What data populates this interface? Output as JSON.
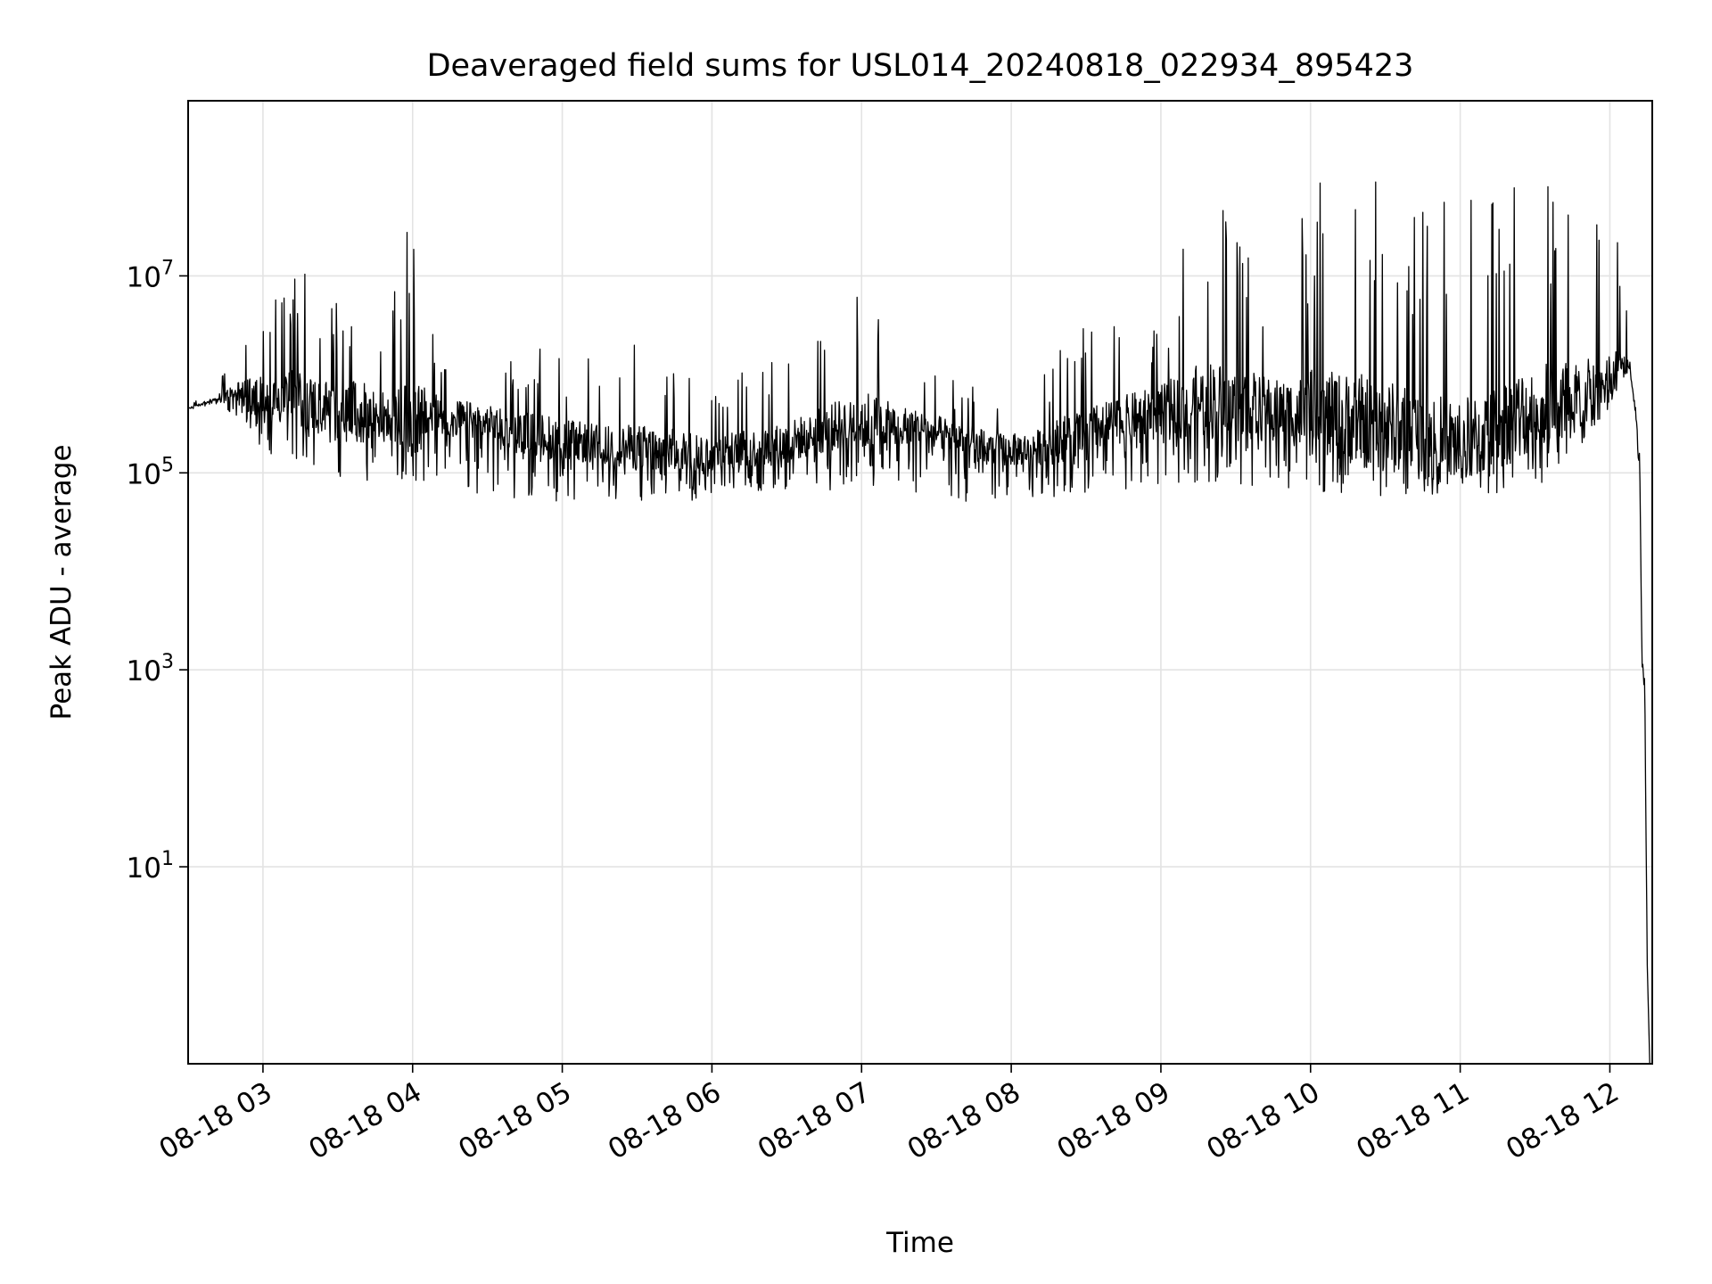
{
  "chart_data": {
    "type": "line",
    "title": "Deaveraged field sums for USL014_20240818_022934_895423",
    "xlabel": "Time",
    "ylabel": "Peak ADU - average",
    "xscale": "time",
    "yscale": "log",
    "xlim": [
      "2024-08-18 02:30",
      "2024-08-18 12:17"
    ],
    "ylim": [
      0.1,
      600000000
    ],
    "grid": true,
    "line_color": "#000000",
    "x_ticks": [
      {
        "value": "2024-08-18 03:00",
        "label": "08-18 03"
      },
      {
        "value": "2024-08-18 04:00",
        "label": "08-18 04"
      },
      {
        "value": "2024-08-18 05:00",
        "label": "08-18 05"
      },
      {
        "value": "2024-08-18 06:00",
        "label": "08-18 06"
      },
      {
        "value": "2024-08-18 07:00",
        "label": "08-18 07"
      },
      {
        "value": "2024-08-18 08:00",
        "label": "08-18 08"
      },
      {
        "value": "2024-08-18 09:00",
        "label": "08-18 09"
      },
      {
        "value": "2024-08-18 10:00",
        "label": "08-18 10"
      },
      {
        "value": "2024-08-18 11:00",
        "label": "08-18 11"
      },
      {
        "value": "2024-08-18 12:00",
        "label": "08-18 12"
      }
    ],
    "y_ticks": [
      {
        "value": 10,
        "base": "10",
        "exp": "1"
      },
      {
        "value": 1000,
        "base": "10",
        "exp": "3"
      },
      {
        "value": 100000,
        "base": "10",
        "exp": "5"
      },
      {
        "value": 10000000,
        "base": "10",
        "exp": "7"
      }
    ],
    "series": [
      {
        "x": [
          "2024-08-18 02:30",
          "2024-08-18 02:40",
          "2024-08-18 02:50",
          "2024-08-18 03:00",
          "2024-08-18 03:10",
          "2024-08-18 03:20",
          "2024-08-18 03:30",
          "2024-08-18 03:40",
          "2024-08-18 03:50",
          "2024-08-18 04:00",
          "2024-08-18 04:10",
          "2024-08-18 04:20",
          "2024-08-18 04:30",
          "2024-08-18 04:40",
          "2024-08-18 04:50",
          "2024-08-18 05:00",
          "2024-08-18 05:10",
          "2024-08-18 05:20",
          "2024-08-18 05:30",
          "2024-08-18 05:40",
          "2024-08-18 05:50",
          "2024-08-18 06:00",
          "2024-08-18 06:10",
          "2024-08-18 06:20",
          "2024-08-18 06:30",
          "2024-08-18 06:40",
          "2024-08-18 06:50",
          "2024-08-18 07:00",
          "2024-08-18 07:10",
          "2024-08-18 07:20",
          "2024-08-18 07:30",
          "2024-08-18 07:40",
          "2024-08-18 07:50",
          "2024-08-18 08:00",
          "2024-08-18 08:10",
          "2024-08-18 08:20",
          "2024-08-18 08:30",
          "2024-08-18 08:40",
          "2024-08-18 08:50",
          "2024-08-18 09:00",
          "2024-08-18 09:10",
          "2024-08-18 09:20",
          "2024-08-18 09:30",
          "2024-08-18 09:40",
          "2024-08-18 09:50",
          "2024-08-18 10:00",
          "2024-08-18 10:10",
          "2024-08-18 10:20",
          "2024-08-18 10:30",
          "2024-08-18 10:40",
          "2024-08-18 10:50",
          "2024-08-18 11:00",
          "2024-08-18 11:10",
          "2024-08-18 11:20",
          "2024-08-18 11:30",
          "2024-08-18 11:40",
          "2024-08-18 11:50",
          "2024-08-18 12:00",
          "2024-08-18 12:04",
          "2024-08-18 12:08",
          "2024-08-18 12:10",
          "2024-08-18 12:12",
          "2024-08-18 12:13",
          "2024-08-18 12:14",
          "2024-08-18 12:15"
        ],
        "baseline": [
          450000,
          550000,
          650000,
          550000,
          600000,
          500000,
          450000,
          400000,
          380000,
          350000,
          380000,
          350000,
          320000,
          260000,
          250000,
          220000,
          200000,
          190000,
          180000,
          170000,
          165000,
          160000,
          170000,
          180000,
          200000,
          250000,
          300000,
          350000,
          320000,
          300000,
          260000,
          220000,
          180000,
          170000,
          180000,
          220000,
          260000,
          320000,
          380000,
          450000,
          500000,
          550000,
          500000,
          450000,
          420000,
          400000,
          380000,
          340000,
          300000,
          260000,
          220000,
          200000,
          250000,
          350000,
          450000,
          550000,
          600000,
          800000,
          1200000,
          1300000,
          500000,
          100000,
          1000,
          600,
          1
        ],
        "low": [
          430000,
          500000,
          300000,
          150000,
          120000,
          100000,
          90000,
          85000,
          80000,
          75000,
          70000,
          65000,
          60000,
          55000,
          55000,
          50000,
          50000,
          50000,
          50000,
          48000,
          48000,
          48000,
          55000,
          58000,
          60000,
          62000,
          65000,
          70000,
          65000,
          62000,
          60000,
          45000,
          50000,
          55000,
          55000,
          55000,
          60000,
          65000,
          70000,
          75000,
          80000,
          80000,
          75000,
          70000,
          70000,
          65000,
          60000,
          58000,
          55000,
          55000,
          52000,
          50000,
          55000,
          60000,
          70000,
          100000,
          200000,
          400000,
          900000,
          1000000,
          400000,
          60000,
          500,
          500,
          0.15
        ],
        "high": [
          500000,
          700000,
          2000000,
          8000000,
          15000000,
          10000000,
          8000000,
          18000000,
          3000000,
          60000000,
          2000000,
          1500000,
          1200000,
          1500000,
          2000000,
          1500000,
          1500000,
          1200000,
          2500000,
          2200000,
          1500000,
          1200000,
          1200000,
          1500000,
          2000000,
          2500000,
          4000000,
          14000000,
          2500000,
          1200000,
          1000000,
          900000,
          800000,
          800000,
          1000000,
          2500000,
          3500000,
          3000000,
          4000000,
          3500000,
          25000000,
          60000000,
          40000000,
          20000000,
          10000000,
          100000000,
          80000000,
          150000000,
          120000000,
          100000000,
          80000000,
          100000000,
          60000000,
          100000000,
          130000000,
          120000000,
          100000000,
          90000000,
          25000000,
          2000000,
          800000,
          300000,
          2000,
          1000,
          1
        ]
      }
    ]
  }
}
